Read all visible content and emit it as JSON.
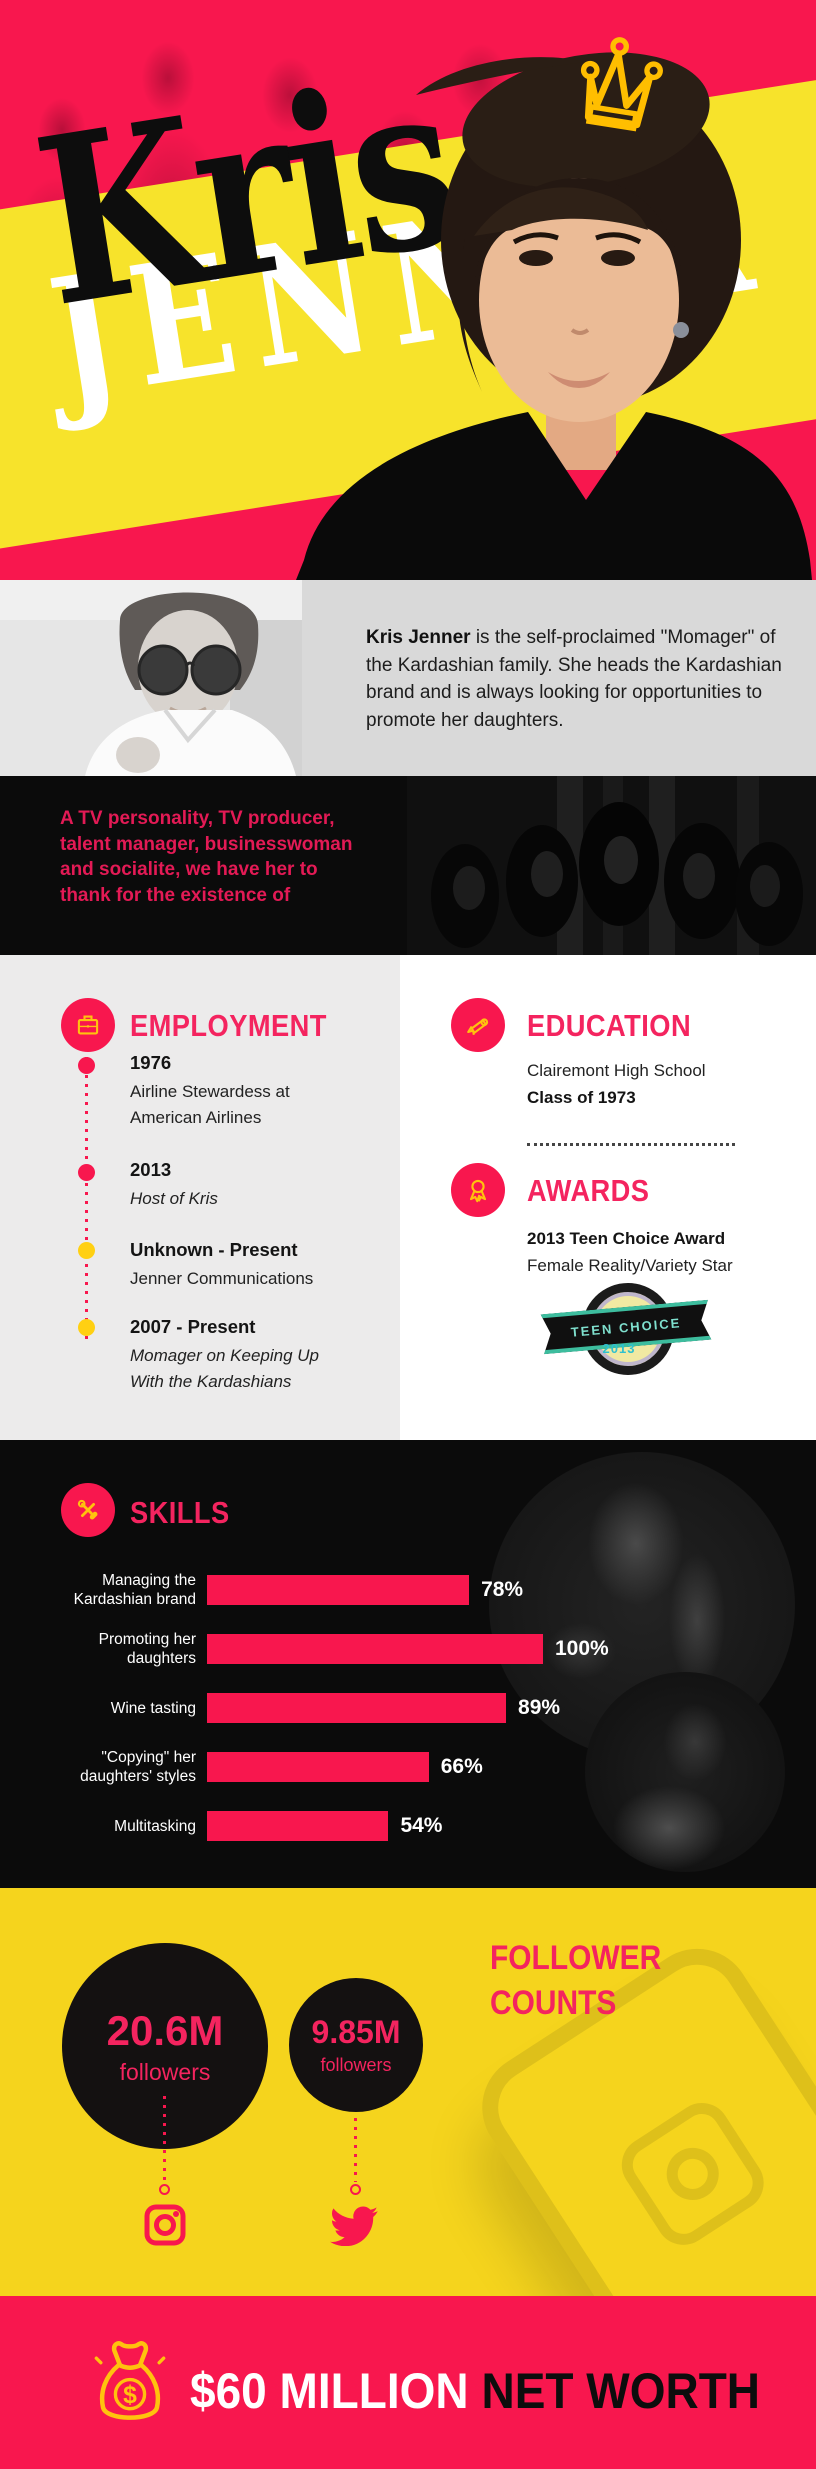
{
  "colors": {
    "pink": "#F8174E",
    "heading_pink": "#F4245F",
    "quote_pink": "#E31A55",
    "yellow_band": "#F7E32B",
    "yellow_section": "#F5D41D",
    "icon_yellow": "#FFC20E",
    "timeline_yellow": "#FFD012",
    "badge_teal": "#3DBD9E",
    "black": "#0B0B0B",
    "bio_gray": "#D9D9D9",
    "panel_gray": "#ECEBEB"
  },
  "icons": {
    "crown": "crown-icon",
    "briefcase": "briefcase-icon",
    "diploma": "diploma-icon",
    "award_ribbon": "award-ribbon-icon",
    "crossed_tools": "crossed-tools-icon",
    "instagram": "instagram-icon",
    "twitter": "twitter-bird-icon",
    "money_bag": "money-bag-icon",
    "phone": "phone-outline-icon"
  },
  "hero": {
    "first_name": "Kris",
    "last_name": "JENNER"
  },
  "bio": {
    "lead": "Kris Jenner",
    "text": " is the self-proclaimed \"Momager\" of the Kardashian family. She heads the Kardashian brand and is always looking for opportunities to promote her daughters."
  },
  "quote": {
    "text": "A TV personality, TV producer, talent manager, businesswoman and socialite, we have her to thank for the existence of"
  },
  "employment": {
    "heading": "EMPLOYMENT",
    "entries": [
      {
        "period": "1976",
        "role_line1": "Airline Stewardess at",
        "role_line2": "American Airlines",
        "dot_color": "#F8174E",
        "role_italic": false
      },
      {
        "period": "2013",
        "role_line1": "Host of Kris",
        "role_line2": "",
        "dot_color": "#F8174E",
        "role_italic": true
      },
      {
        "period": "Unknown - Present",
        "role_line1": "Jenner Communications",
        "role_line2": "",
        "dot_color": "#FFD012",
        "role_italic": false
      },
      {
        "period": "2007 - Present",
        "role_line1": "Momager on Keeping Up",
        "role_line2": "With the Kardashians",
        "dot_color": "#FFD012",
        "role_italic": true
      }
    ]
  },
  "education": {
    "heading": "EDUCATION",
    "school": "Clairemont High School",
    "class_of": "Class of 1973"
  },
  "awards": {
    "heading": "AWARDS",
    "title": "2013 Teen Choice Award",
    "subtitle": "Female Reality/Variety Star",
    "badge_text": "TEEN CHOICE",
    "badge_year": "2013"
  },
  "chart_data": {
    "type": "bar",
    "orientation": "horizontal",
    "title": "SKILLS",
    "categories": [
      "Managing the Kardashian brand",
      "Promoting her daughters",
      "Wine tasting",
      "\"Copying\" her daughters' styles",
      "Multitasking"
    ],
    "values": [
      78,
      100,
      89,
      66,
      54
    ],
    "value_labels": [
      "78%",
      "100%",
      "89%",
      "66%",
      "54%"
    ],
    "label_lines": [
      [
        "Managing the",
        "Kardashian brand"
      ],
      [
        "Promoting her",
        "daughters"
      ],
      [
        "Wine tasting"
      ],
      [
        "\"Copying\" her",
        "daughters' styles"
      ],
      [
        "Multitasking"
      ]
    ],
    "xlim": [
      0,
      100
    ],
    "bar_color": "#F8174E",
    "grid": false,
    "legend": false
  },
  "followers": {
    "heading_line1": "FOLLOWER",
    "heading_line2": "COUNTS",
    "accounts": [
      {
        "platform": "Instagram",
        "icon": "instagram-icon",
        "count": "20.6M",
        "label": "followers"
      },
      {
        "platform": "Twitter",
        "icon": "twitter-bird-icon",
        "count": "9.85M",
        "label": "followers"
      }
    ]
  },
  "footer": {
    "amount": "$60 MILLION",
    "label": "NET WORTH"
  }
}
